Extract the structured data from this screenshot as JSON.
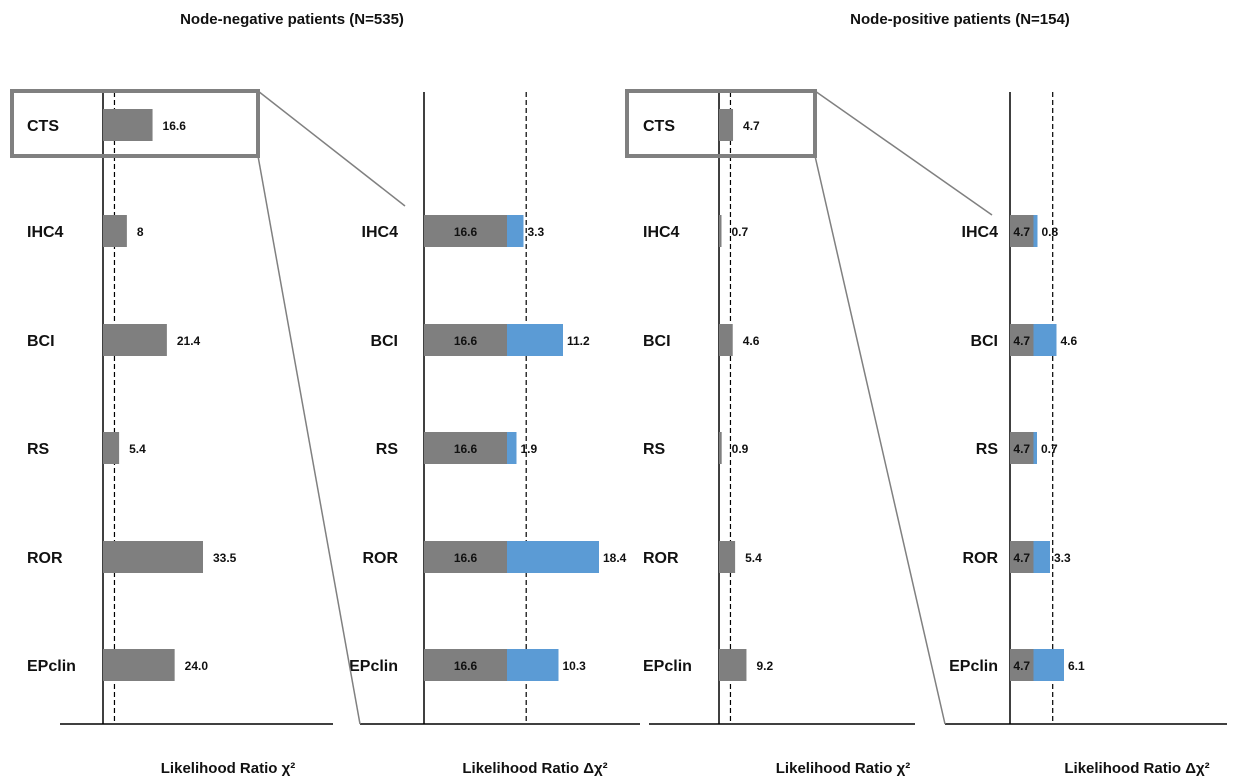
{
  "colors": {
    "base_bar": "#7f7f7f",
    "delta_bar": "#5b9bd5",
    "highlight_box": "#808080",
    "axis": "#000000"
  },
  "groups": [
    {
      "title": "Node-negative patients (N=535)",
      "base_reference_value": 16.6
    },
    {
      "title": "Node-positive patients (N=154)",
      "base_reference_value": 4.7
    }
  ],
  "chart_data": [
    {
      "type": "bar",
      "orientation": "horizontal",
      "group": "Node-negative patients (N=535)",
      "categories": [
        "CTS",
        "IHC4",
        "BCI",
        "RS",
        "ROR",
        "EPclin"
      ],
      "values": [
        16.6,
        8,
        21.4,
        5.4,
        33.5,
        24.0
      ],
      "value_labels": [
        "16.6",
        "8",
        "21.4",
        "5.4",
        "33.5",
        "24.0"
      ],
      "xlabel": "Likelihood Ratio χ²",
      "xlim": [
        0,
        40
      ],
      "reference_line": 3.84,
      "highlighted_category": "CTS"
    },
    {
      "type": "bar",
      "orientation": "horizontal",
      "stacked": true,
      "group": "Node-negative patients (N=535)",
      "categories": [
        "IHC4",
        "BCI",
        "RS",
        "ROR",
        "EPclin"
      ],
      "series": [
        {
          "values": [
            16.6,
            16.6,
            16.6,
            16.6,
            16.6
          ],
          "labels": [
            "16.6",
            "16.6",
            "16.6",
            "16.6",
            "16.6"
          ]
        },
        {
          "values": [
            3.3,
            11.2,
            1.9,
            18.4,
            10.3
          ],
          "labels": [
            "3.3",
            "11.2",
            "1.9",
            "18.4",
            "10.3"
          ]
        }
      ],
      "xlabel": "Likelihood Ratio Δχ²",
      "xlim": [
        0,
        40
      ],
      "reference_line": 20.44
    },
    {
      "type": "bar",
      "orientation": "horizontal",
      "group": "Node-positive patients (N=154)",
      "categories": [
        "CTS",
        "IHC4",
        "BCI",
        "RS",
        "ROR",
        "EPclin"
      ],
      "values": [
        4.7,
        0.7,
        4.6,
        0.9,
        5.4,
        9.2
      ],
      "value_labels": [
        "4.7",
        "0.7",
        "4.6",
        "0.9",
        "5.4",
        "9.2"
      ],
      "xlabel": "Likelihood Ratio χ²",
      "xlim": [
        0,
        40
      ],
      "reference_line": 3.84,
      "highlighted_category": "CTS"
    },
    {
      "type": "bar",
      "orientation": "horizontal",
      "stacked": true,
      "group": "Node-positive patients (N=154)",
      "categories": [
        "IHC4",
        "BCI",
        "RS",
        "ROR",
        "EPclin"
      ],
      "series": [
        {
          "values": [
            4.7,
            4.7,
            4.7,
            4.7,
            4.7
          ],
          "labels": [
            "4.7",
            "4.7",
            "4.7",
            "4.7",
            "4.7"
          ]
        },
        {
          "values": [
            0.8,
            4.6,
            0.7,
            3.3,
            6.1
          ],
          "labels": [
            "0.8",
            "4.6",
            "0.7",
            "3.3",
            "6.1"
          ]
        }
      ],
      "xlabel": "Likelihood Ratio Δχ²",
      "xlim": [
        0,
        40
      ],
      "reference_line": 8.54
    }
  ]
}
